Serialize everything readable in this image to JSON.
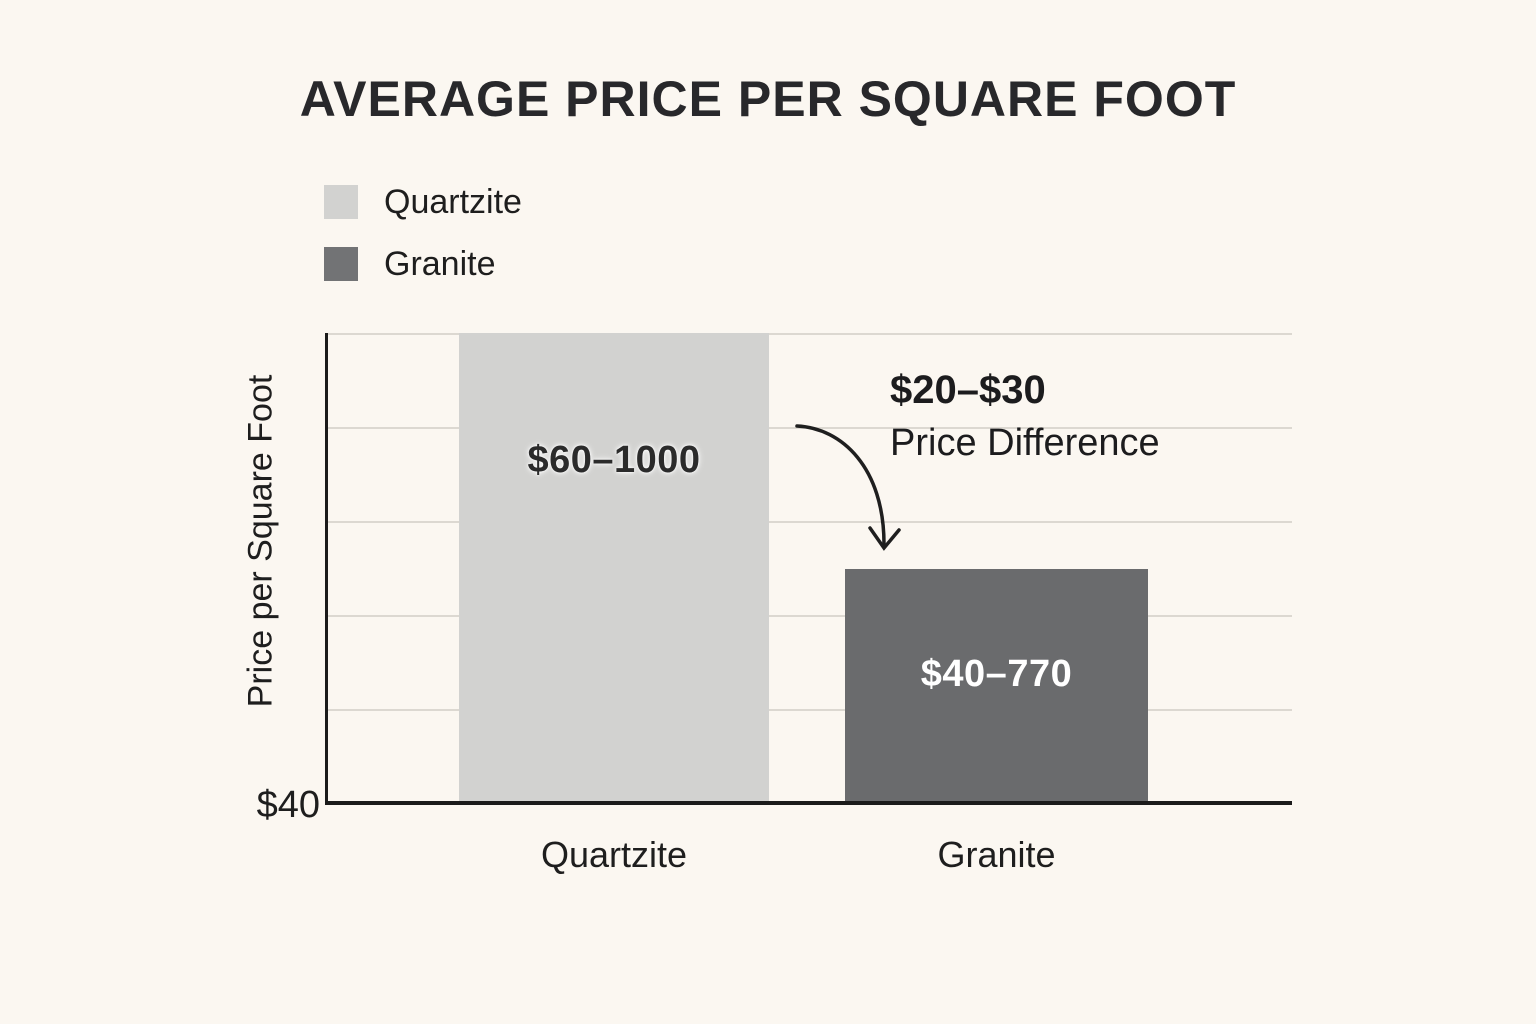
{
  "chart_data": {
    "type": "bar",
    "title": "AVERAGE PRICE PER SQUARE FOOT",
    "ylabel": "Price per Square Foot",
    "xlabel": "",
    "categories": [
      "Quartzite",
      "Granite"
    ],
    "series": [
      {
        "name": "Quartzite",
        "range_label": "$60–1000",
        "min_usd": 60,
        "max_usd": 1000,
        "color": "#d2d2d0",
        "label_color": "#2b2b2b",
        "bar_height_fraction": 1.0
      },
      {
        "name": "Granite",
        "range_label": "$40–770",
        "min_usd": 40,
        "max_usd": 770,
        "color": "#6a6b6d",
        "label_color": "#ffffff",
        "bar_height_fraction": 0.498
      }
    ],
    "legend": [
      {
        "label": "Quartzite",
        "color": "#d2d2d0"
      },
      {
        "label": "Granite",
        "color": "#727375"
      }
    ],
    "legend_position": "top-left",
    "y_axis": {
      "base_tick_label": "$40",
      "tick_labels_visible": [
        "$40"
      ],
      "gridlines": 5,
      "grid": "horizontal"
    },
    "annotation": {
      "line1": "$20–$30",
      "line2": "Price Difference",
      "arrow": "curved arrow from right of Quartzite bar down to top of Granite bar"
    },
    "colors": {
      "background": "#fbf7f1",
      "axis": "#1b1b1b",
      "gridline": "#dcd8d1",
      "text": "#28282b"
    }
  }
}
